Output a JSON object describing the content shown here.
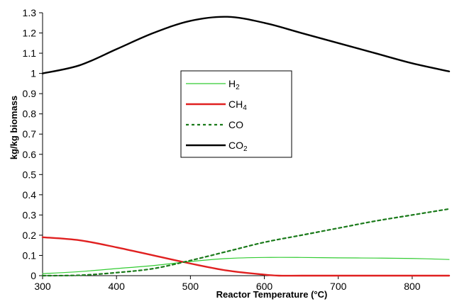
{
  "chart_data": {
    "type": "line",
    "xlabel": "Reactor Temperature (°C)",
    "ylabel": "kg/kg biomass",
    "xlim": [
      300,
      850
    ],
    "ylim": [
      0,
      1.3
    ],
    "xticks": [
      "300",
      "400",
      "500",
      "600",
      "700",
      "800"
    ],
    "yticks": [
      "0",
      "0.1",
      "0.2",
      "0.3",
      "0.4",
      "0.5",
      "0.6",
      "0.7",
      "0.8",
      "0.9",
      "1",
      "1.1",
      "1.2",
      "1.3"
    ],
    "grid": false,
    "legend": "upper-left-center",
    "series": [
      {
        "name": "H2",
        "label_main": "H",
        "label_sub": "2",
        "color": "#33cc33",
        "style": "solid-thin",
        "x": [
          300,
          350,
          400,
          450,
          500,
          550,
          600,
          650,
          700,
          750,
          800,
          850
        ],
        "y": [
          0.01,
          0.02,
          0.035,
          0.05,
          0.07,
          0.085,
          0.09,
          0.09,
          0.088,
          0.087,
          0.085,
          0.08
        ]
      },
      {
        "name": "CH4",
        "label_main": "CH",
        "label_sub": "4",
        "color": "#e02020",
        "style": "solid-thick",
        "x": [
          300,
          350,
          400,
          450,
          500,
          550,
          600,
          620,
          650,
          700,
          750,
          800,
          850
        ],
        "y": [
          0.19,
          0.175,
          0.14,
          0.1,
          0.06,
          0.025,
          0.005,
          0.0,
          0.0,
          0.0,
          0.0,
          0.0,
          0.0
        ]
      },
      {
        "name": "CO",
        "label_main": "CO",
        "label_sub": "",
        "color": "#1a7a1a",
        "style": "dashed",
        "x": [
          300,
          350,
          400,
          450,
          500,
          550,
          600,
          650,
          700,
          750,
          800,
          850
        ],
        "y": [
          0.0,
          0.002,
          0.015,
          0.035,
          0.075,
          0.12,
          0.165,
          0.2,
          0.235,
          0.27,
          0.3,
          0.33
        ]
      },
      {
        "name": "CO2",
        "label_main": "CO",
        "label_sub": "2",
        "color": "#000000",
        "style": "solid-thick",
        "x": [
          300,
          350,
          400,
          450,
          500,
          550,
          600,
          650,
          700,
          750,
          800,
          850
        ],
        "y": [
          1.0,
          1.04,
          1.12,
          1.2,
          1.26,
          1.28,
          1.25,
          1.2,
          1.15,
          1.1,
          1.05,
          1.01
        ]
      }
    ]
  }
}
